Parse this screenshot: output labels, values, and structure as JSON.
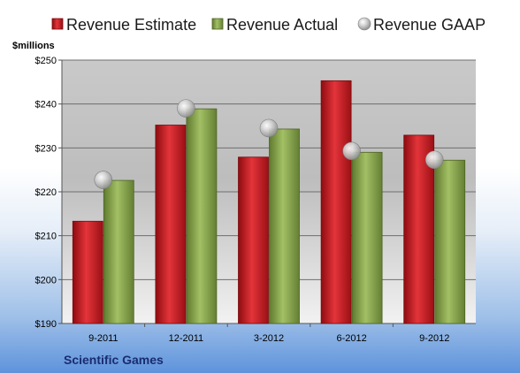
{
  "chart_data": {
    "type": "bar",
    "categories": [
      "9-2011",
      "12-2011",
      "3-2012",
      "6-2012",
      "9-2012"
    ],
    "series": [
      {
        "name": "Revenue Estimate",
        "kind": "bar",
        "color": "#c8161d",
        "values": [
          213.3,
          235.2,
          227.9,
          245.3,
          232.9
        ]
      },
      {
        "name": "Revenue Actual",
        "kind": "bar",
        "color": "#8aa84e",
        "values": [
          222.6,
          238.9,
          234.3,
          229.0,
          227.2
        ]
      },
      {
        "name": "Revenue GAAP",
        "kind": "marker",
        "color": "#b8b8b8",
        "values": [
          222.7,
          239.0,
          234.5,
          229.3,
          227.3
        ]
      }
    ],
    "ylabel": "$millions",
    "ylim": [
      190,
      250
    ],
    "yticks": [
      190,
      200,
      210,
      220,
      230,
      240,
      250
    ],
    "ytick_labels": [
      "$190",
      "$200",
      "$210",
      "$220",
      "$230",
      "$240",
      "$250"
    ],
    "grid": true,
    "legend_position": "top",
    "footer": "Scientific Games"
  }
}
